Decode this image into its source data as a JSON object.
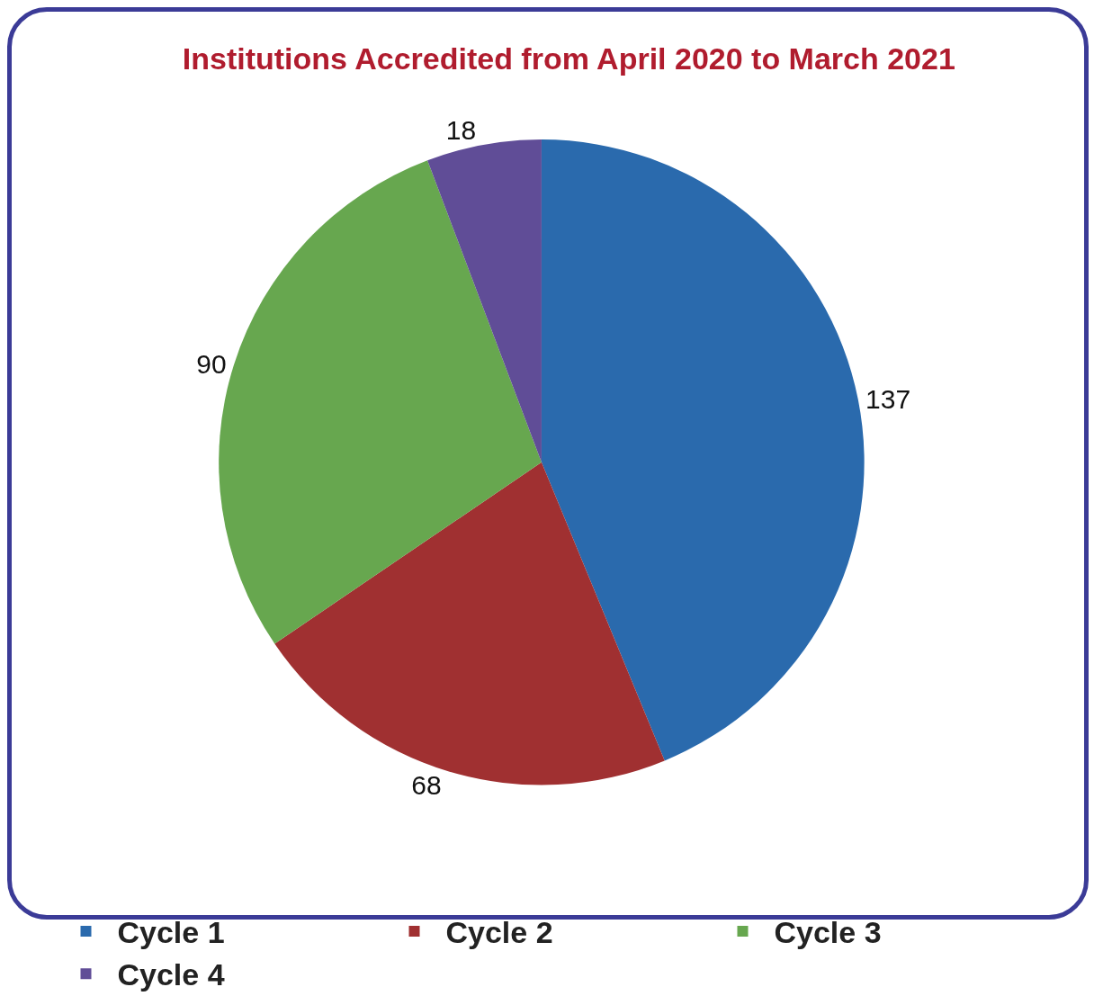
{
  "chart_data": {
    "type": "pie",
    "title": "Institutions Accredited from April 2020 to March 2021",
    "categories": [
      "Cycle 1",
      "Cycle 2",
      "Cycle 3",
      "Cycle 4"
    ],
    "values": [
      137,
      68,
      90,
      18
    ],
    "colors": [
      "#2a6aad",
      "#a03031",
      "#67a74f",
      "#604d97"
    ],
    "data_labels": true,
    "legend": "bottom"
  }
}
